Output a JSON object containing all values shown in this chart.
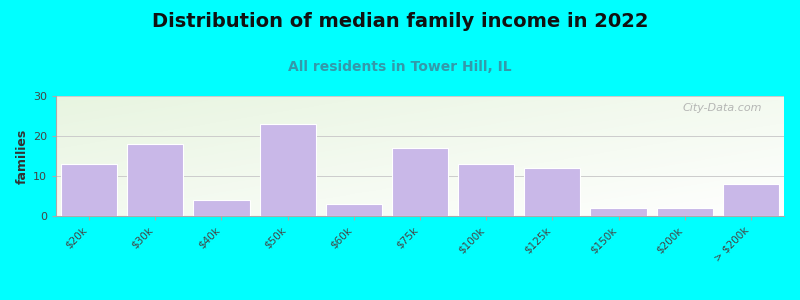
{
  "title": "Distribution of median family income in 2022",
  "subtitle": "All residents in Tower Hill, IL",
  "categories": [
    "$20k",
    "$30k",
    "$40k",
    "$50k",
    "$60k",
    "$75k",
    "$100k",
    "$125k",
    "$150k",
    "$200k",
    "> $200k"
  ],
  "values": [
    13,
    18,
    4,
    23,
    3,
    17,
    13,
    12,
    2,
    2,
    8
  ],
  "bar_color": "#c9b8e8",
  "bar_edge_color": "#ffffff",
  "background_color": "#00ffff",
  "title_fontsize": 14,
  "subtitle_fontsize": 10,
  "subtitle_color": "#3399aa",
  "ylabel": "families",
  "ylabel_fontsize": 9,
  "ylim": [
    0,
    30
  ],
  "yticks": [
    0,
    10,
    20,
    30
  ],
  "watermark": "City-Data.com"
}
